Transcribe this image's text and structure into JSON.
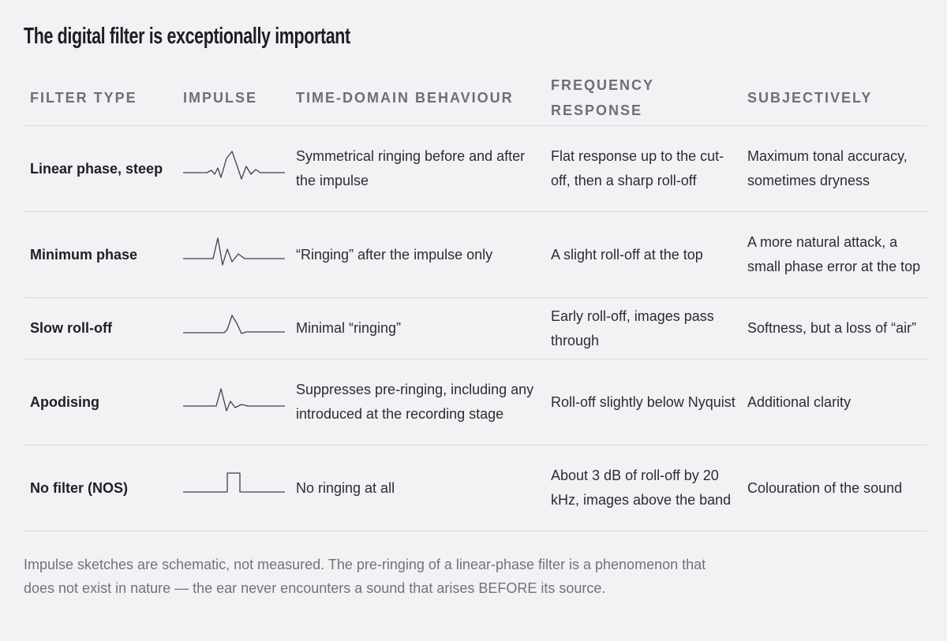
{
  "title": "The digital filter is exceptionally important",
  "table": {
    "headers": [
      "FILTER TYPE",
      "IMPULSE",
      "TIME-DOMAIN BEHAVIOUR",
      "FREQUENCY RESPONSE",
      "SUBJECTIVELY"
    ],
    "rows": [
      [
        "Linear phase, steep",
        "Symmetrical ringing before and after the impulse",
        "Flat response up to the cut-off, then a sharp roll-off",
        "Maximum tonal accuracy, sometimes dryness"
      ],
      [
        "Minimum phase",
        "“Ringing” after the impulse only",
        "A slight roll-off at the top",
        "A more natural attack, a small phase error at the top"
      ],
      [
        "Slow roll-off",
        "Minimal “ringing”",
        "Early roll-off, images pass through",
        "Softness, but a loss of “air”"
      ],
      [
        "Apodising",
        "Suppresses pre-ringing, including any introduced at the recording stage",
        "Roll-off slightly below Nyquist",
        "Additional clarity"
      ],
      [
        "No filter (NOS)",
        "No ringing at all",
        "About 3 dB of roll-off by 20 kHz, images above the band",
        "Colouration of the sound"
      ]
    ]
  },
  "footnote": "Impulse sketches are schematic, not measured. The pre-ringing of a linear-phase filter is a phenomenon that does not exist in nature — the ear never encounters a sound that arises BEFORE its source."
}
